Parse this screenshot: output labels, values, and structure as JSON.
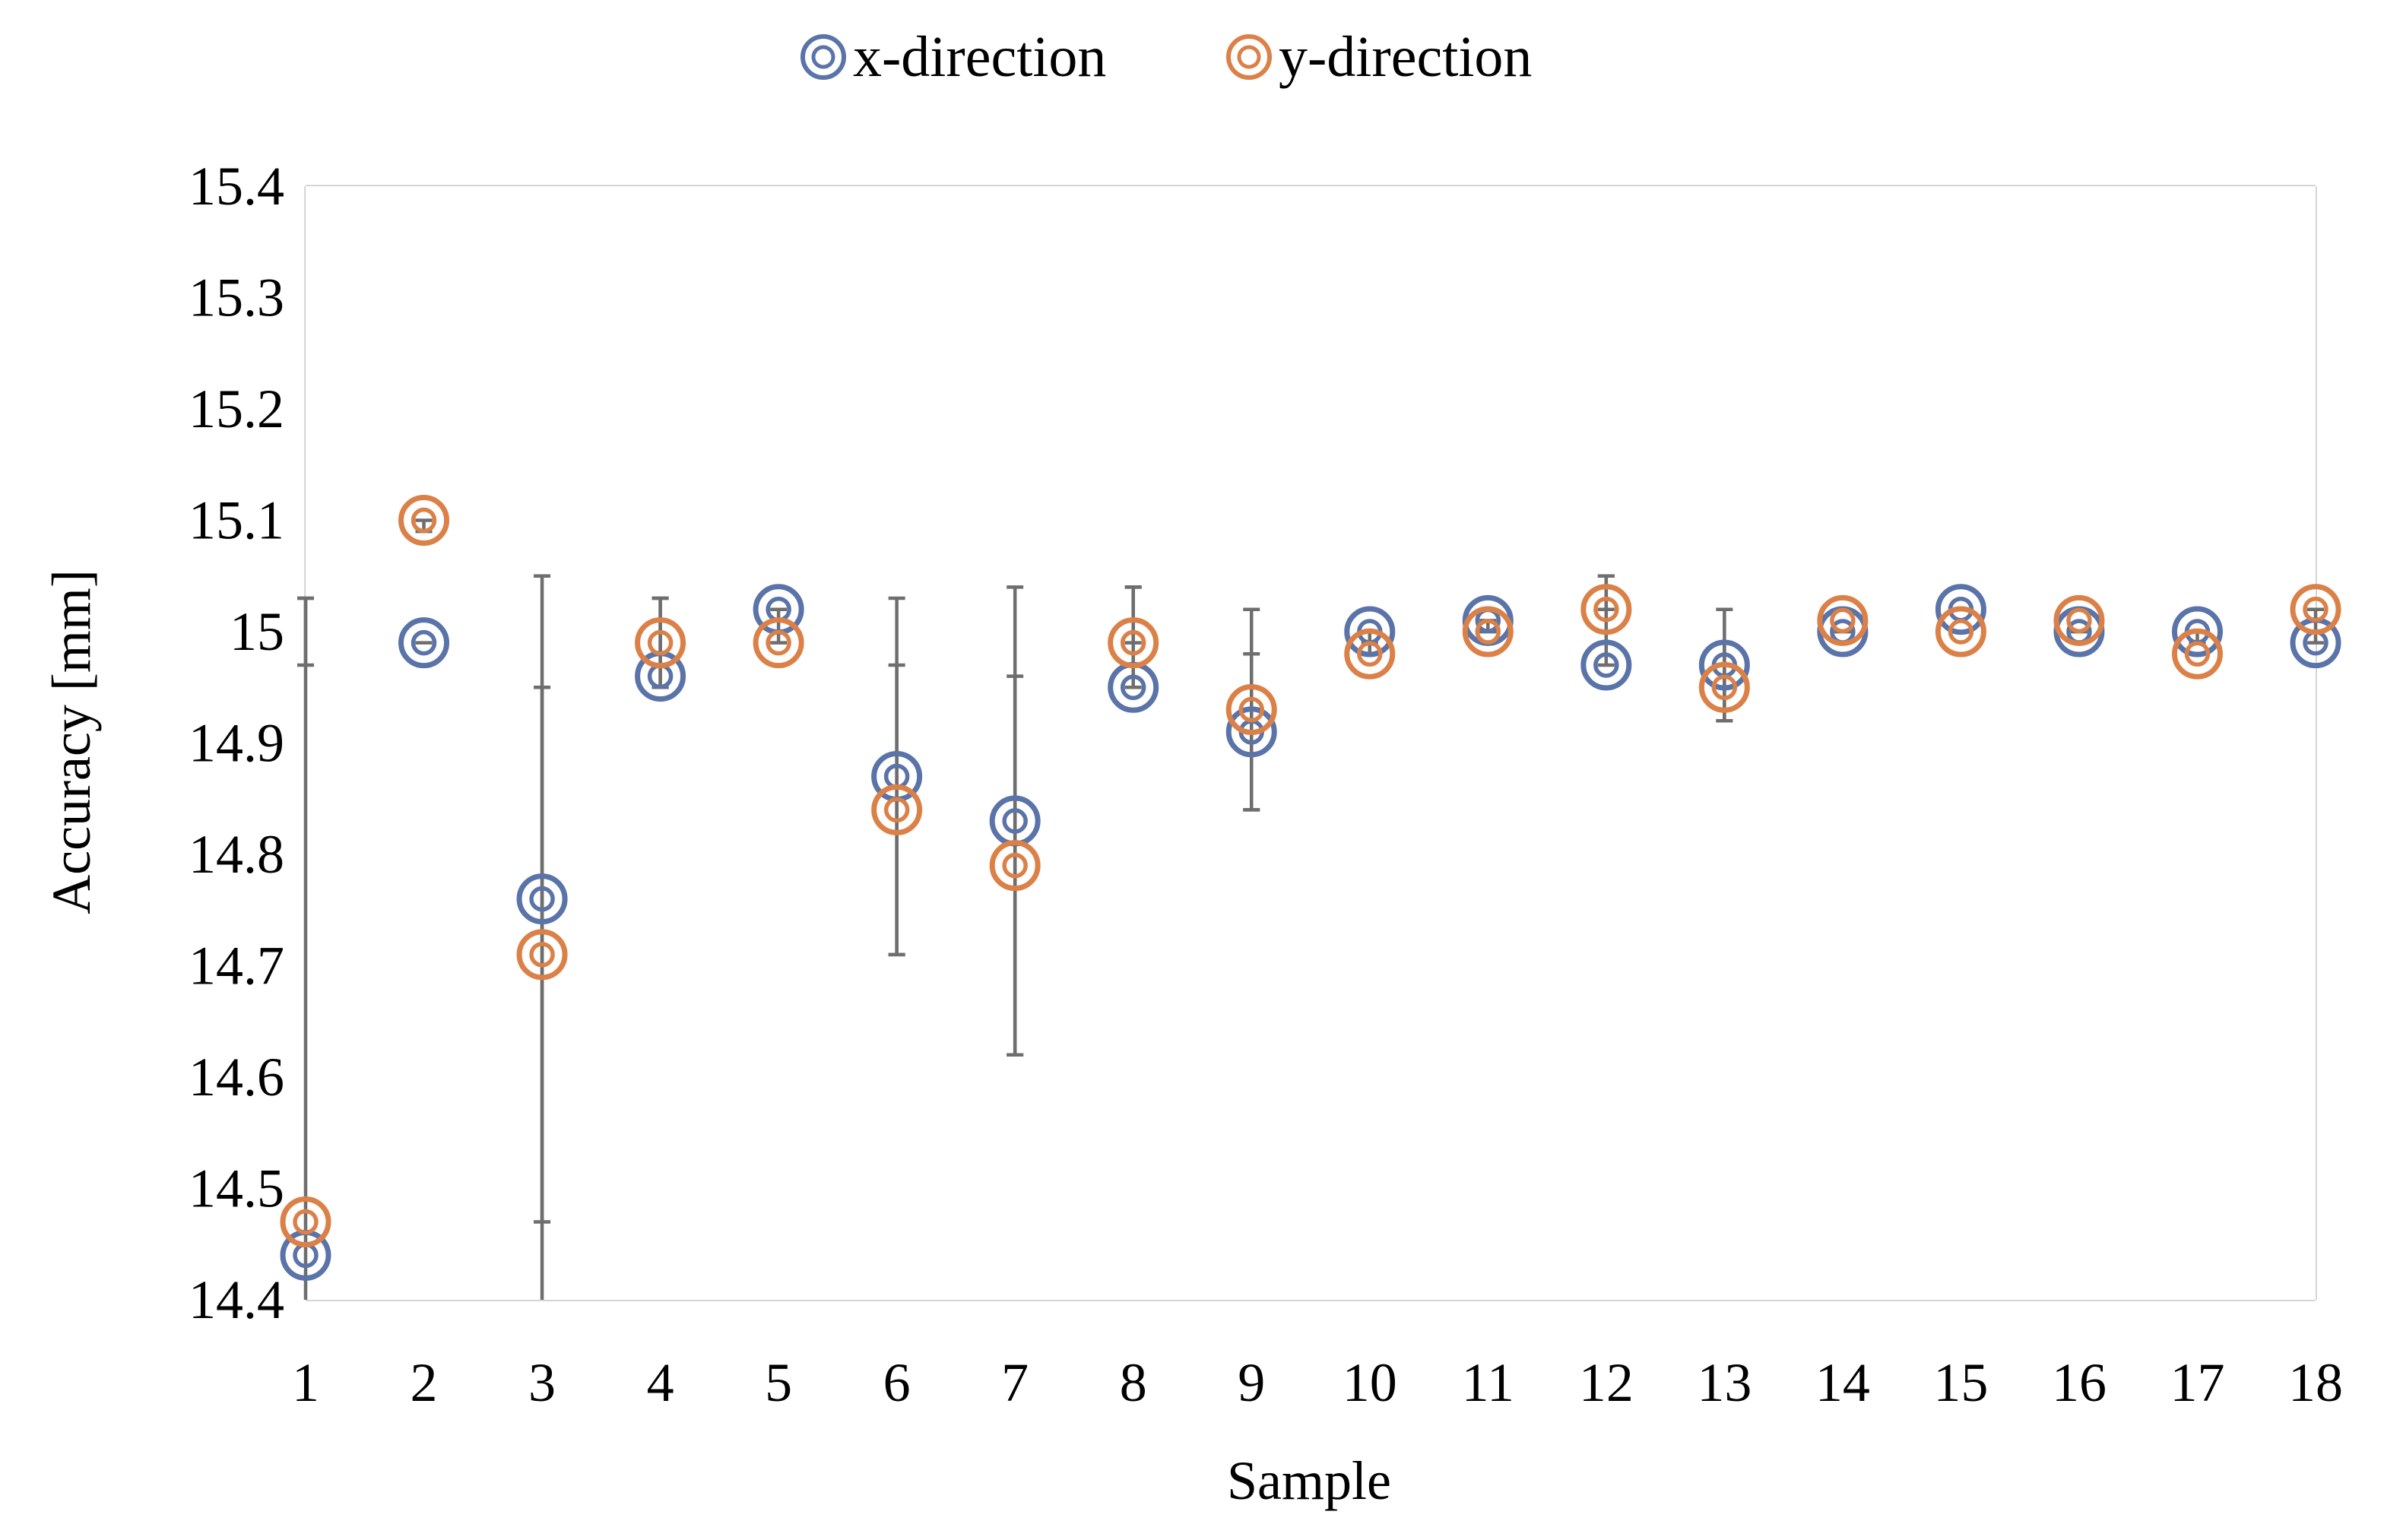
{
  "chart_data": {
    "type": "scatter",
    "title": "",
    "xlabel": "Sample",
    "ylabel": "Accuracy [mm]",
    "x": [
      1,
      2,
      3,
      4,
      5,
      6,
      7,
      8,
      9,
      10,
      11,
      12,
      13,
      14,
      15,
      16,
      17,
      18
    ],
    "xticks": [
      "1",
      "2",
      "3",
      "4",
      "5",
      "6",
      "7",
      "8",
      "9",
      "10",
      "11",
      "12",
      "13",
      "14",
      "15",
      "16",
      "17",
      "18"
    ],
    "ylim": [
      14.4,
      15.4
    ],
    "yticks": [
      "14.4",
      "14.5",
      "14.6",
      "14.7",
      "14.8",
      "14.9",
      "15",
      "15.1",
      "15.2",
      "15.3",
      "15.4"
    ],
    "grid": true,
    "legend_position": "top-center",
    "series": [
      {
        "name": "x-direction",
        "color": "#5a73a8",
        "values": [
          14.44,
          14.99,
          14.76,
          14.96,
          15.02,
          14.87,
          14.83,
          14.95,
          14.91,
          15.0,
          15.01,
          14.97,
          14.97,
          15.0,
          15.02,
          15.0,
          15.0,
          14.99
        ],
        "error_bars": [
          [
            14.97,
            15.03
          ],
          [
            14.99,
            14.99
          ],
          [
            14.47,
            15.05
          ],
          [
            14.95,
            15.03
          ],
          [
            15.0,
            15.02
          ],
          [
            14.71,
            15.03
          ],
          [
            14.62,
            15.04
          ],
          [
            14.95,
            15.04
          ],
          [
            14.84,
            15.02
          ],
          [
            14.99,
            15.0
          ],
          [
            15.0,
            15.01
          ],
          [
            14.97,
            15.05
          ],
          [
            14.92,
            15.02
          ],
          [
            15.0,
            15.0
          ],
          [
            15.0,
            15.0
          ],
          [
            15.0,
            15.0
          ],
          [
            14.99,
            15.0
          ],
          [
            14.99,
            15.02
          ]
        ]
      },
      {
        "name": "y-direction",
        "color": "#db8148",
        "values": [
          14.47,
          15.1,
          14.71,
          14.99,
          14.99,
          14.84,
          14.79,
          14.99,
          14.93,
          14.98,
          15.0,
          15.02,
          14.95,
          15.01,
          15.0,
          15.01,
          14.98,
          15.02
        ],
        "error_bars": [
          [
            14.4,
            15.03
          ],
          [
            15.09,
            15.1
          ],
          [
            14.4,
            14.95
          ],
          [
            14.95,
            15.03
          ],
          [
            14.99,
            15.0
          ],
          [
            14.71,
            14.97
          ],
          [
            14.62,
            14.96
          ],
          [
            14.99,
            15.04
          ],
          [
            14.84,
            14.98
          ],
          [
            14.98,
            15.0
          ],
          [
            15.0,
            15.0
          ],
          [
            15.02,
            15.05
          ],
          [
            14.92,
            14.99
          ],
          [
            15.0,
            15.0
          ],
          [
            15.0,
            15.0
          ],
          [
            15.0,
            15.0
          ],
          [
            14.98,
            14.98
          ],
          [
            15.02,
            15.02
          ]
        ]
      }
    ]
  }
}
